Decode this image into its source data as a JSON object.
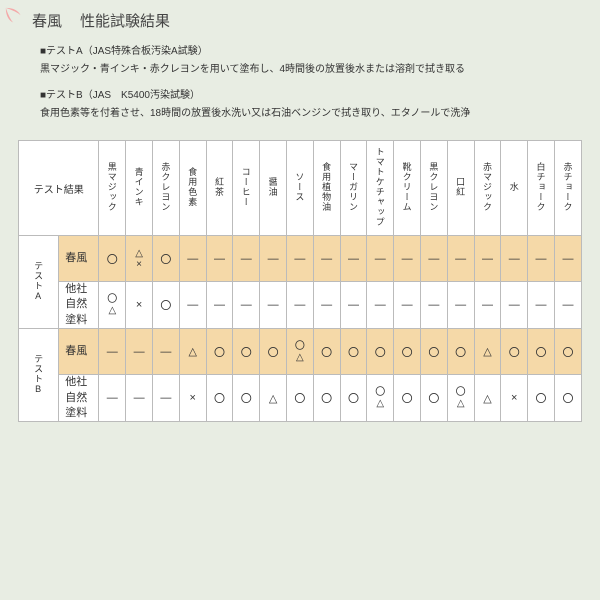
{
  "title": {
    "a": "春風",
    "b": "性能試験結果"
  },
  "leaf_color": "#f4a8a8",
  "testA": {
    "head": "■テストA（JAS特殊合板汚染A試験）",
    "body": "黒マジック・青インキ・赤クレヨンを用いて塗布し、4時間後の放置後水または溶剤で拭き取る"
  },
  "testB": {
    "head": "■テストB（JAS　K5400汚染試験）",
    "body": "食用色素等を付着させ、18時間の放置後水洗い又は石油ベンジンで拭き取り、エタノールで洗浄"
  },
  "header_label": "テスト結果",
  "columns": [
    "黒マジック",
    "青インキ",
    "赤クレヨン",
    "食用色素",
    "紅茶",
    "コーヒー",
    "醤油",
    "ソース",
    "食用植物油",
    "マーガリン",
    "トマトケチャップ",
    "靴クリーム",
    "黒クレヨン",
    "口紅",
    "赤マジック",
    "水",
    "白チョーク",
    "赤チョーク"
  ],
  "groups": [
    "テストA",
    "テストB"
  ],
  "rowlabels": {
    "harukaze": "春風",
    "other": "他社\n自然塗料"
  },
  "sym": {
    "circle": "〇",
    "tri": "△",
    "x": "×",
    "dash": "—"
  },
  "rows": {
    "a1": [
      "〇",
      "△×",
      "〇",
      "—",
      "—",
      "—",
      "—",
      "—",
      "—",
      "—",
      "—",
      "—",
      "—",
      "—",
      "—",
      "—",
      "—",
      "—"
    ],
    "a2": [
      "〇△",
      "×",
      "〇",
      "—",
      "—",
      "—",
      "—",
      "—",
      "—",
      "—",
      "—",
      "—",
      "—",
      "—",
      "—",
      "—",
      "—",
      "—"
    ],
    "b1": [
      "—",
      "—",
      "—",
      "△",
      "〇",
      "〇",
      "〇",
      "〇△",
      "〇",
      "〇",
      "〇",
      "〇",
      "〇",
      "〇",
      "△",
      "〇",
      "〇",
      "〇"
    ],
    "b2": [
      "—",
      "—",
      "—",
      "×",
      "〇",
      "〇",
      "△",
      "〇",
      "〇",
      "〇",
      "〇△",
      "〇",
      "〇",
      "〇△",
      "△",
      "×",
      "〇",
      "〇"
    ]
  },
  "highlight_rows": [
    "a1",
    "b1"
  ]
}
